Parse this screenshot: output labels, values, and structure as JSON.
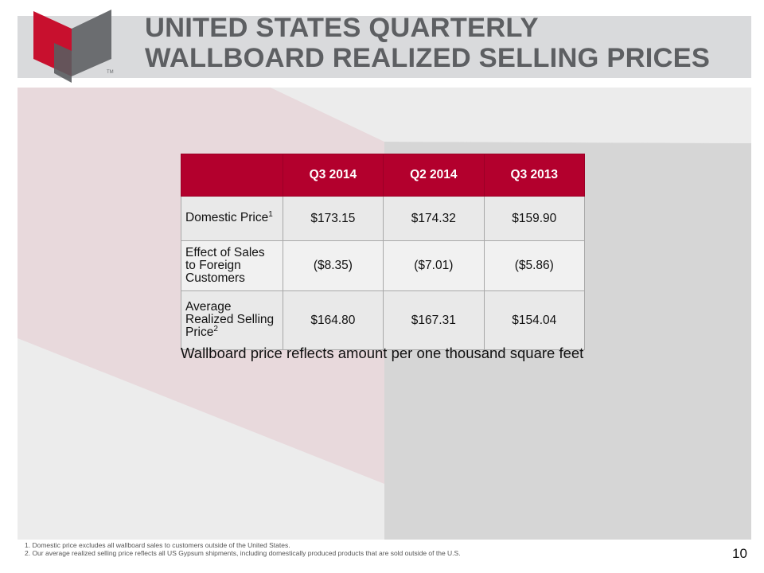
{
  "colors": {
    "accent": "#b3002d",
    "title_text": "#5d5f62",
    "header_bar": "#d9dadc"
  },
  "logo": {
    "name": "brand-logo",
    "trademark": "TM"
  },
  "title": {
    "line1": "UNITED STATES QUARTERLY",
    "line2": "WALLBOARD REALIZED SELLING PRICES"
  },
  "table": {
    "columns": [
      "",
      "Q3 2014",
      "Q2 2014",
      "Q3 2013"
    ],
    "rows": [
      {
        "label": "Domestic Price",
        "footnote_ref": "1",
        "values": [
          "$173.15",
          "$174.32",
          "$159.90"
        ]
      },
      {
        "label_lines": [
          "Effect of Sales",
          "to Foreign",
          "Customers"
        ],
        "values": [
          "($8.35)",
          "($7.01)",
          "($5.86)"
        ]
      },
      {
        "label_lines": [
          "Average",
          "Realized Selling",
          "Price"
        ],
        "footnote_ref": "2",
        "values": [
          "$164.80",
          "$167.31",
          "$154.04"
        ]
      }
    ]
  },
  "caption": "Wallboard price reflects amount per one thousand square feet",
  "footnotes": [
    "1. Domestic price excludes all wallboard sales to customers outside of the United States.",
    "2. Our average realized selling price reflects all US Gypsum shipments, including domestically produced products that are sold outside of the U.S."
  ],
  "page_number": "10"
}
